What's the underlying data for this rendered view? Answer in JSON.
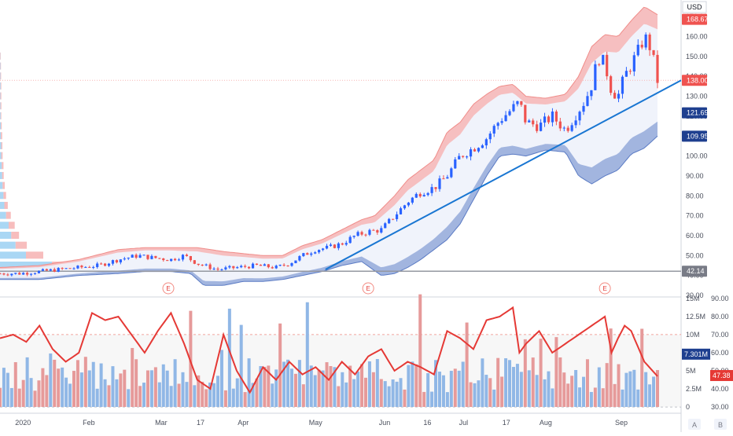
{
  "currency": "USD",
  "colors": {
    "up": "#2962ff",
    "down": "#ef5350",
    "upper_band": "#f8aeac",
    "lower_band": "#8ea5d8",
    "trendline": "#1976d2",
    "rsi": "#e53935",
    "vol_up": "#90b7e6",
    "vol_down": "#e69a9a"
  },
  "earnings_marker": "E",
  "price_axis": {
    "ticks": [
      "170.00",
      "160.00",
      "150.00",
      "140.00",
      "130.00",
      "120.00",
      "110.00",
      "100.00",
      "90.00",
      "80.00",
      "70.00",
      "60.00",
      "50.00",
      "40.00",
      "30.00"
    ],
    "tags": {
      "upper": "168.67",
      "last": "138.00",
      "mid": "121.69",
      "lower": "109.95",
      "level": "42.14"
    }
  },
  "volume_axis": {
    "ticks": [
      "15M",
      "12.5M",
      "10M",
      "7.5M",
      "5M",
      "2.5M",
      "0"
    ],
    "current": "7.301M"
  },
  "rsi_axis": {
    "ticks": [
      "90.00",
      "80.00",
      "70.00",
      "60.00",
      "50.00",
      "40.00",
      "30.00"
    ],
    "current": "47.38"
  },
  "time_axis": [
    "2020",
    "Feb",
    "Mar",
    "17",
    "Apr",
    "May",
    "Jun",
    "16",
    "Jul",
    "17",
    "Aug",
    "Sep"
  ],
  "scale_buttons": {
    "auto": "A",
    "log": "B"
  },
  "chart_data": {
    "type": "candlestick",
    "price_range": [
      30,
      176
    ],
    "horizontal_level": 42.14,
    "last_price": 138.0,
    "upper_band_last": 168.67,
    "mid_band_last": 121.69,
    "lower_band_last": 109.95,
    "trendline": {
      "from": [
        0.495,
        43
      ],
      "to": [
        1.0,
        138
      ]
    },
    "price_path": [
      [
        0.0,
        41
      ],
      [
        0.03,
        41
      ],
      [
        0.06,
        42
      ],
      [
        0.09,
        43
      ],
      [
        0.12,
        44
      ],
      [
        0.15,
        45
      ],
      [
        0.18,
        48
      ],
      [
        0.21,
        50
      ],
      [
        0.23,
        49
      ],
      [
        0.26,
        48
      ],
      [
        0.28,
        50
      ],
      [
        0.3,
        46
      ],
      [
        0.33,
        43
      ],
      [
        0.36,
        44
      ],
      [
        0.39,
        45
      ],
      [
        0.42,
        44
      ],
      [
        0.44,
        46
      ],
      [
        0.46,
        50
      ],
      [
        0.48,
        53
      ],
      [
        0.5,
        54
      ],
      [
        0.52,
        56
      ],
      [
        0.54,
        60
      ],
      [
        0.56,
        62
      ],
      [
        0.58,
        63
      ],
      [
        0.6,
        70
      ],
      [
        0.62,
        77
      ],
      [
        0.64,
        82
      ],
      [
        0.66,
        84
      ],
      [
        0.68,
        90
      ],
      [
        0.7,
        100
      ],
      [
        0.72,
        104
      ],
      [
        0.74,
        109
      ],
      [
        0.76,
        118
      ],
      [
        0.78,
        124
      ],
      [
        0.79,
        127
      ],
      [
        0.8,
        117
      ],
      [
        0.82,
        115
      ],
      [
        0.84,
        120
      ],
      [
        0.86,
        113
      ],
      [
        0.88,
        123
      ],
      [
        0.89,
        128
      ],
      [
        0.9,
        136
      ],
      [
        0.91,
        150
      ],
      [
        0.92,
        146
      ],
      [
        0.93,
        133
      ],
      [
        0.94,
        130
      ],
      [
        0.95,
        140
      ],
      [
        0.96,
        146
      ],
      [
        0.97,
        152
      ],
      [
        0.98,
        160
      ],
      [
        0.99,
        154
      ],
      [
        1.0,
        138
      ]
    ],
    "upper_band": [
      [
        0.0,
        44
      ],
      [
        0.06,
        45
      ],
      [
        0.12,
        48
      ],
      [
        0.18,
        53
      ],
      [
        0.22,
        54
      ],
      [
        0.26,
        54
      ],
      [
        0.3,
        54
      ],
      [
        0.34,
        52
      ],
      [
        0.37,
        51
      ],
      [
        0.4,
        50
      ],
      [
        0.43,
        50
      ],
      [
        0.46,
        55
      ],
      [
        0.49,
        58
      ],
      [
        0.52,
        63
      ],
      [
        0.55,
        68
      ],
      [
        0.57,
        70
      ],
      [
        0.6,
        80
      ],
      [
        0.62,
        88
      ],
      [
        0.64,
        93
      ],
      [
        0.66,
        98
      ],
      [
        0.68,
        112
      ],
      [
        0.7,
        117
      ],
      [
        0.72,
        126
      ],
      [
        0.74,
        131
      ],
      [
        0.76,
        135
      ],
      [
        0.78,
        136
      ],
      [
        0.8,
        130
      ],
      [
        0.83,
        129
      ],
      [
        0.86,
        131
      ],
      [
        0.88,
        140
      ],
      [
        0.9,
        155
      ],
      [
        0.92,
        161
      ],
      [
        0.94,
        160
      ],
      [
        0.96,
        168
      ],
      [
        0.98,
        175
      ],
      [
        1.0,
        171
      ]
    ],
    "lower_band": [
      [
        0.0,
        38
      ],
      [
        0.06,
        38
      ],
      [
        0.12,
        40
      ],
      [
        0.18,
        41
      ],
      [
        0.22,
        42
      ],
      [
        0.26,
        42
      ],
      [
        0.29,
        41
      ],
      [
        0.31,
        35
      ],
      [
        0.34,
        35
      ],
      [
        0.37,
        37
      ],
      [
        0.4,
        37
      ],
      [
        0.43,
        38
      ],
      [
        0.46,
        40
      ],
      [
        0.49,
        42
      ],
      [
        0.52,
        45
      ],
      [
        0.55,
        47
      ],
      [
        0.58,
        40
      ],
      [
        0.6,
        41
      ],
      [
        0.62,
        44
      ],
      [
        0.64,
        48
      ],
      [
        0.66,
        53
      ],
      [
        0.68,
        58
      ],
      [
        0.7,
        66
      ],
      [
        0.72,
        78
      ],
      [
        0.74,
        90
      ],
      [
        0.76,
        100
      ],
      [
        0.78,
        101
      ],
      [
        0.8,
        100
      ],
      [
        0.83,
        103
      ],
      [
        0.86,
        102
      ],
      [
        0.88,
        90
      ],
      [
        0.9,
        86
      ],
      [
        0.92,
        90
      ],
      [
        0.94,
        93
      ],
      [
        0.96,
        101
      ],
      [
        0.98,
        104
      ],
      [
        1.0,
        110
      ]
    ],
    "volume_profile": [
      {
        "price": 150,
        "buy": 0.6,
        "sell": 1.0
      },
      {
        "price": 145,
        "buy": 1.0,
        "sell": 1.2
      },
      {
        "price": 140,
        "buy": 1.0,
        "sell": 1.5
      },
      {
        "price": 135,
        "buy": 1.5,
        "sell": 1.5
      },
      {
        "price": 130,
        "buy": 1.0,
        "sell": 2.0
      },
      {
        "price": 125,
        "buy": 1.2,
        "sell": 2.0
      },
      {
        "price": 120,
        "buy": 1.5,
        "sell": 1.5
      },
      {
        "price": 115,
        "buy": 2.0,
        "sell": 2.0
      },
      {
        "price": 110,
        "buy": 2.0,
        "sell": 3.0
      },
      {
        "price": 105,
        "buy": 3.0,
        "sell": 2.5
      },
      {
        "price": 100,
        "buy": 3.0,
        "sell": 3.0
      },
      {
        "price": 95,
        "buy": 4.0,
        "sell": 4.0
      },
      {
        "price": 90,
        "buy": 5.0,
        "sell": 3.5
      },
      {
        "price": 85,
        "buy": 6.0,
        "sell": 5.0
      },
      {
        "price": 80,
        "buy": 8.0,
        "sell": 6.0
      },
      {
        "price": 75,
        "buy": 10.0,
        "sell": 8.0
      },
      {
        "price": 70,
        "buy": 14.0,
        "sell": 11.0
      },
      {
        "price": 65,
        "buy": 20.0,
        "sell": 14.0
      },
      {
        "price": 60,
        "buy": 26.0,
        "sell": 18.0
      },
      {
        "price": 55,
        "buy": 36.0,
        "sell": 26.0
      },
      {
        "price": 50,
        "buy": 60.0,
        "sell": 40.0
      },
      {
        "price": 45,
        "buy": 120.0,
        "sell": 80.0
      },
      {
        "price": 40,
        "buy": 55.0,
        "sell": 35.0
      }
    ],
    "volume_range": [
      0,
      15
    ],
    "volume_last_millions": 7.301,
    "rsi_range": [
      30,
      90
    ],
    "rsi_last": 47.38,
    "rsi_levels": [
      70,
      30
    ],
    "rsi_path": [
      [
        0.0,
        68
      ],
      [
        0.02,
        70
      ],
      [
        0.04,
        66
      ],
      [
        0.06,
        75
      ],
      [
        0.08,
        62
      ],
      [
        0.1,
        55
      ],
      [
        0.12,
        60
      ],
      [
        0.14,
        82
      ],
      [
        0.16,
        78
      ],
      [
        0.18,
        80
      ],
      [
        0.2,
        70
      ],
      [
        0.22,
        60
      ],
      [
        0.24,
        72
      ],
      [
        0.26,
        82
      ],
      [
        0.28,
        65
      ],
      [
        0.3,
        45
      ],
      [
        0.32,
        40
      ],
      [
        0.34,
        70
      ],
      [
        0.36,
        50
      ],
      [
        0.38,
        38
      ],
      [
        0.4,
        52
      ],
      [
        0.42,
        45
      ],
      [
        0.44,
        55
      ],
      [
        0.46,
        48
      ],
      [
        0.48,
        52
      ],
      [
        0.5,
        45
      ],
      [
        0.52,
        55
      ],
      [
        0.54,
        48
      ],
      [
        0.56,
        58
      ],
      [
        0.58,
        62
      ],
      [
        0.6,
        50
      ],
      [
        0.62,
        55
      ],
      [
        0.64,
        52
      ],
      [
        0.66,
        48
      ],
      [
        0.68,
        72
      ],
      [
        0.7,
        68
      ],
      [
        0.72,
        62
      ],
      [
        0.74,
        78
      ],
      [
        0.76,
        80
      ],
      [
        0.78,
        85
      ],
      [
        0.79,
        60
      ],
      [
        0.8,
        65
      ],
      [
        0.82,
        72
      ],
      [
        0.84,
        60
      ],
      [
        0.86,
        65
      ],
      [
        0.88,
        70
      ],
      [
        0.9,
        75
      ],
      [
        0.92,
        80
      ],
      [
        0.93,
        60
      ],
      [
        0.94,
        68
      ],
      [
        0.95,
        75
      ],
      [
        0.96,
        72
      ],
      [
        0.98,
        55
      ],
      [
        1.0,
        47
      ]
    ]
  }
}
